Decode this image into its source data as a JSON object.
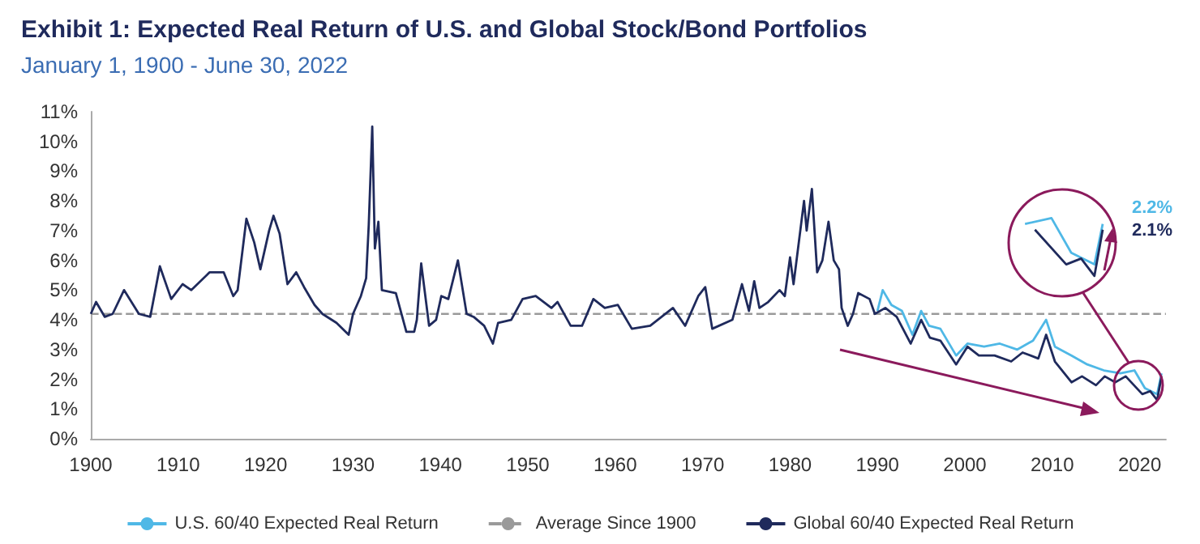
{
  "chart_data": {
    "type": "line",
    "title": "Exhibit 1: Expected Real Return of U.S. and Global Stock/Bond Portfolios",
    "subtitle": "January 1, 1900 - June 30, 2022",
    "xlim": [
      1900,
      2023
    ],
    "xticks": [
      1900,
      1910,
      1920,
      1930,
      1940,
      1950,
      1960,
      1970,
      1980,
      1990,
      2000,
      2010,
      2020
    ],
    "ylim": [
      0,
      11
    ],
    "yticks": [
      {
        "value": 0,
        "label": "0%"
      },
      {
        "value": 1,
        "label": "1%"
      },
      {
        "value": 2,
        "label": "2%"
      },
      {
        "value": 3,
        "label": "3%"
      },
      {
        "value": 4,
        "label": "4%"
      },
      {
        "value": 5,
        "label": "5%"
      },
      {
        "value": 6,
        "label": "6%"
      },
      {
        "value": 7,
        "label": "7%"
      },
      {
        "value": 8,
        "label": "8%"
      },
      {
        "value": 9,
        "label": "9%"
      },
      {
        "value": 10,
        "label": "10%"
      },
      {
        "value": 11,
        "label": "11%"
      }
    ],
    "grid": false,
    "legend": "bottom",
    "marker": "none",
    "line_style": "solid",
    "series": [
      {
        "name": "U.S. 60/40 Expected Real Return",
        "color": "#4fb8e6",
        "x": [
          1990,
          1990.6,
          1991.6,
          1992.8,
          1994,
          1995,
          1995.9,
          1997.2,
          1999,
          2000.3,
          2002.2,
          2004,
          2006,
          2007.8,
          2009.3,
          2010.3,
          2012.2,
          2014,
          2015.9,
          2017.8,
          2019.4,
          2020.6,
          2022,
          2022.5
        ],
        "values": [
          4.3,
          5.0,
          4.5,
          4.3,
          3.5,
          4.3,
          3.8,
          3.7,
          2.8,
          3.2,
          3.1,
          3.2,
          3.0,
          3.3,
          4.0,
          3.1,
          2.8,
          2.5,
          2.3,
          2.2,
          2.3,
          1.7,
          1.5,
          2.2
        ]
      },
      {
        "name": "Global 60/40 Expected Real Return",
        "color": "#1f2a5c",
        "x": [
          1900,
          1900.6,
          1901.6,
          1902.5,
          1903.8,
          1905.5,
          1906.8,
          1907.9,
          1909.2,
          1910.5,
          1911.5,
          1913.6,
          1915.2,
          1916.3,
          1916.8,
          1917.8,
          1918.7,
          1919.4,
          1920.4,
          1920.9,
          1921.6,
          1922.5,
          1923.5,
          1924.4,
          1925.6,
          1926.5,
          1928.1,
          1929.5,
          1930,
          1930.9,
          1931.5,
          1931.8,
          1932.2,
          1932.5,
          1932.9,
          1933.3,
          1934.9,
          1936.1,
          1937,
          1937.3,
          1937.8,
          1938.7,
          1939.5,
          1940.1,
          1940.9,
          1942,
          1943,
          1943.8,
          1945,
          1946,
          1946.6,
          1948.1,
          1949.4,
          1950.9,
          1952.7,
          1953.4,
          1954.9,
          1956.2,
          1957.5,
          1958.8,
          1960.3,
          1961.9,
          1964,
          1966.6,
          1968,
          1969.5,
          1970.3,
          1971.1,
          1973.4,
          1974.5,
          1975.3,
          1975.9,
          1976.5,
          1977.5,
          1978.8,
          1979.4,
          1980,
          1980.4,
          1981.6,
          1981.9,
          1982.5,
          1983.1,
          1983.7,
          1984.4,
          1985,
          1985.6,
          1985.9,
          1986.6,
          1987.2,
          1987.8,
          1989.1,
          1989.7,
          1990.9,
          1992.2,
          1993.8,
          1995,
          1996,
          1997.2,
          1999,
          2000.3,
          2001.6,
          2003.4,
          2005.3,
          2006.6,
          2008.4,
          2009.3,
          2010.3,
          2012.2,
          2013.4,
          2015,
          2016,
          2017.2,
          2018.4,
          2020.3,
          2021.2,
          2022,
          2022.5
        ],
        "values": [
          4.2,
          4.6,
          4.1,
          4.2,
          5.0,
          4.2,
          4.1,
          5.8,
          4.7,
          5.2,
          5.0,
          5.6,
          5.6,
          4.8,
          5.0,
          7.4,
          6.6,
          5.7,
          7.0,
          7.5,
          6.9,
          5.2,
          5.6,
          5.1,
          4.5,
          4.2,
          3.9,
          3.5,
          4.2,
          4.8,
          5.4,
          7.2,
          10.5,
          6.4,
          7.3,
          5.0,
          4.9,
          3.6,
          3.6,
          4.0,
          5.9,
          3.8,
          4.0,
          4.8,
          4.7,
          6.0,
          4.2,
          4.1,
          3.8,
          3.2,
          3.9,
          4.0,
          4.7,
          4.8,
          4.4,
          4.6,
          3.8,
          3.8,
          4.7,
          4.4,
          4.5,
          3.7,
          3.8,
          4.4,
          3.8,
          4.8,
          5.1,
          3.7,
          4.0,
          5.2,
          4.3,
          5.3,
          4.4,
          4.6,
          5.0,
          4.8,
          6.1,
          5.2,
          8.0,
          7.0,
          8.4,
          5.6,
          6.0,
          7.3,
          6.0,
          5.7,
          4.4,
          3.8,
          4.2,
          4.9,
          4.7,
          4.2,
          4.4,
          4.1,
          3.2,
          4.0,
          3.4,
          3.3,
          2.5,
          3.1,
          2.8,
          2.8,
          2.6,
          2.9,
          2.7,
          3.5,
          2.6,
          1.9,
          2.1,
          1.8,
          2.1,
          1.9,
          2.1,
          1.5,
          1.6,
          1.3,
          2.1
        ]
      }
    ],
    "ref_lines": [
      {
        "axis": "y",
        "value": 4.2,
        "label": "Average Since 1900",
        "color": "#9a9a9a",
        "line_style": "dashed"
      }
    ],
    "annotations": [
      "2.2%",
      "2.1%"
    ]
  }
}
